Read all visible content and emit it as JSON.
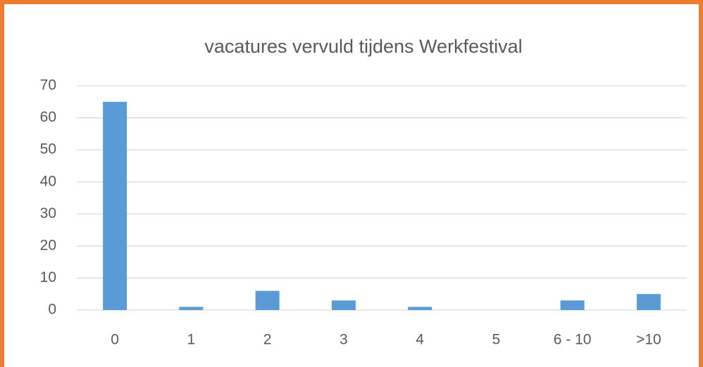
{
  "chart_data": {
    "type": "bar",
    "title": "vacatures vervuld tijdens Werkfestival",
    "categories": [
      "0",
      "1",
      "2",
      "3",
      "4",
      "5",
      "6 - 10",
      ">10"
    ],
    "values": [
      65,
      1,
      6,
      3,
      1,
      0,
      3,
      5
    ],
    "color": "#5b9bd5",
    "ylim": [
      0,
      70
    ],
    "yticks": [
      0,
      10,
      20,
      30,
      40,
      50,
      60,
      70
    ],
    "grid": true
  }
}
